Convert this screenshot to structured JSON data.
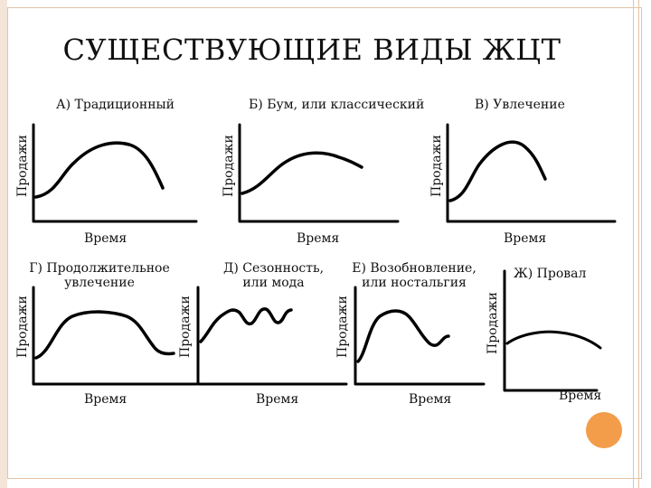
{
  "slide": {
    "title": "СУЩЕСТВУЮЩИЕ ВИДЫ ЖЦТ",
    "accent_color": "#f39c4a",
    "frame_color": "#e3c3a6"
  },
  "axis": {
    "y_label": "Продажи",
    "x_label": "Время"
  },
  "panels": [
    {
      "id": "a",
      "label_line1": "А) Традиционный",
      "label_line2": ""
    },
    {
      "id": "b",
      "label_line1": "Б) Бум, или классический",
      "label_line2": ""
    },
    {
      "id": "v",
      "label_line1": "В) Увлечение",
      "label_line2": ""
    },
    {
      "id": "g",
      "label_line1": "Г) Продолжительное",
      "label_line2": "увлечение"
    },
    {
      "id": "d",
      "label_line1": "Д) Сезонность,",
      "label_line2": "или мода"
    },
    {
      "id": "e",
      "label_line1": "Е) Возобновление,",
      "label_line2": "или ностальгия"
    },
    {
      "id": "zh",
      "label_line1": "Ж) Провал",
      "label_line2": ""
    }
  ]
}
